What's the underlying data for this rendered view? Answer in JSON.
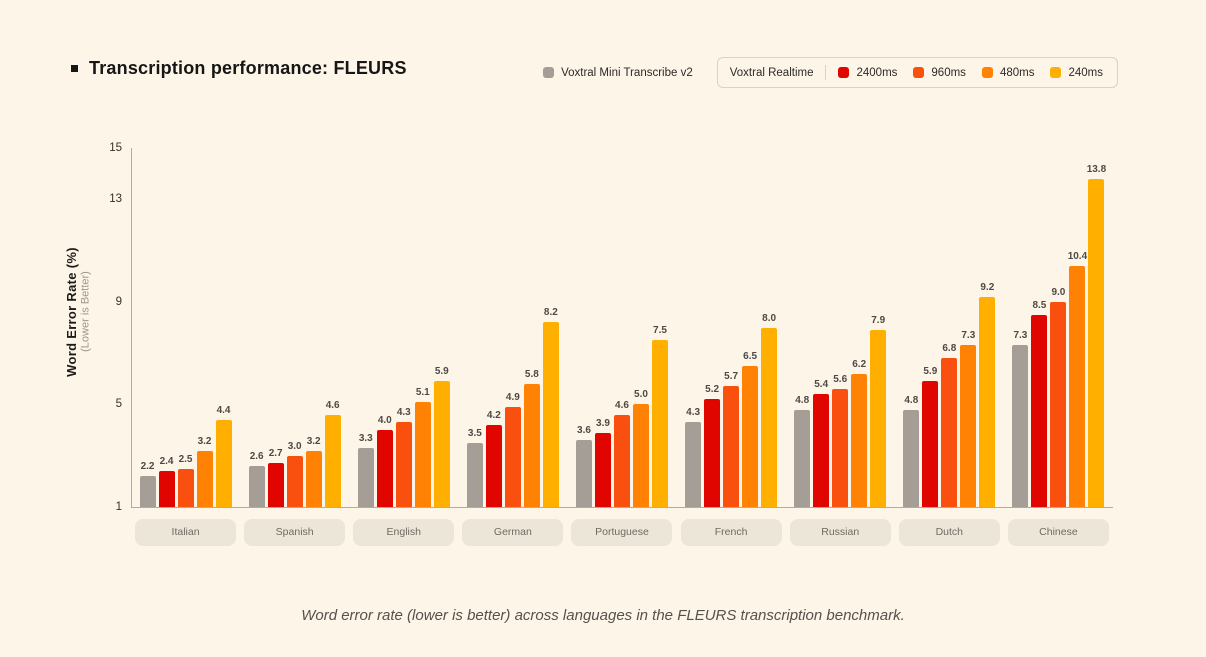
{
  "page": {
    "background": "#FCF5E8",
    "title": "Transcription performance: FLEURS",
    "caption": "Word error rate (lower is better) across languages in the FLEURS transcription benchmark."
  },
  "legend": {
    "mini": {
      "label": "Voxtral Mini Transcribe v2",
      "color": "#A49E97"
    },
    "realtime_label": "Voxtral Realtime",
    "latencies": [
      {
        "label": "2400ms",
        "color": "#E10500"
      },
      {
        "label": "960ms",
        "color": "#FA500F"
      },
      {
        "label": "480ms",
        "color": "#FF8205"
      },
      {
        "label": "240ms",
        "color": "#FFAF00"
      }
    ]
  },
  "axis": {
    "ylabel": "Word Error Rate (%)",
    "ylabel_sub": "(Lower is Better)",
    "yticks": [
      1,
      5,
      9,
      13,
      15
    ],
    "ymin": 1,
    "ymax": 15
  },
  "chart_data": {
    "type": "bar",
    "title": "Transcription performance: FLEURS",
    "xlabel": "",
    "ylabel": "Word Error Rate (%)",
    "ylabel_sub": "(Lower is Better)",
    "ylim": [
      1,
      15
    ],
    "yticks": [
      1,
      5,
      9,
      13,
      15
    ],
    "grid": false,
    "legend_position": "top-right",
    "categories": [
      "Italian",
      "Spanish",
      "English",
      "German",
      "Portuguese",
      "French",
      "Russian",
      "Dutch",
      "Chinese"
    ],
    "series": [
      {
        "name": "Voxtral Mini Transcribe v2",
        "color": "#A49E97",
        "values": [
          2.2,
          2.6,
          3.3,
          3.5,
          3.6,
          4.3,
          4.8,
          4.8,
          7.3
        ]
      },
      {
        "name": "Voxtral Realtime 2400ms",
        "color": "#E10500",
        "values": [
          2.4,
          2.7,
          4.0,
          4.2,
          3.9,
          5.2,
          5.4,
          5.9,
          8.5
        ]
      },
      {
        "name": "Voxtral Realtime 960ms",
        "color": "#FA500F",
        "values": [
          2.5,
          3.0,
          4.3,
          4.9,
          4.6,
          5.7,
          5.6,
          6.8,
          9.0
        ]
      },
      {
        "name": "Voxtral Realtime 480ms",
        "color": "#FF8205",
        "values": [
          3.2,
          3.2,
          5.1,
          5.8,
          5.0,
          6.5,
          6.2,
          7.3,
          10.4
        ]
      },
      {
        "name": "Voxtral Realtime 240ms",
        "color": "#FFAF00",
        "values": [
          4.4,
          4.6,
          5.9,
          8.2,
          7.5,
          8.0,
          7.9,
          9.2,
          13.8
        ]
      }
    ]
  }
}
